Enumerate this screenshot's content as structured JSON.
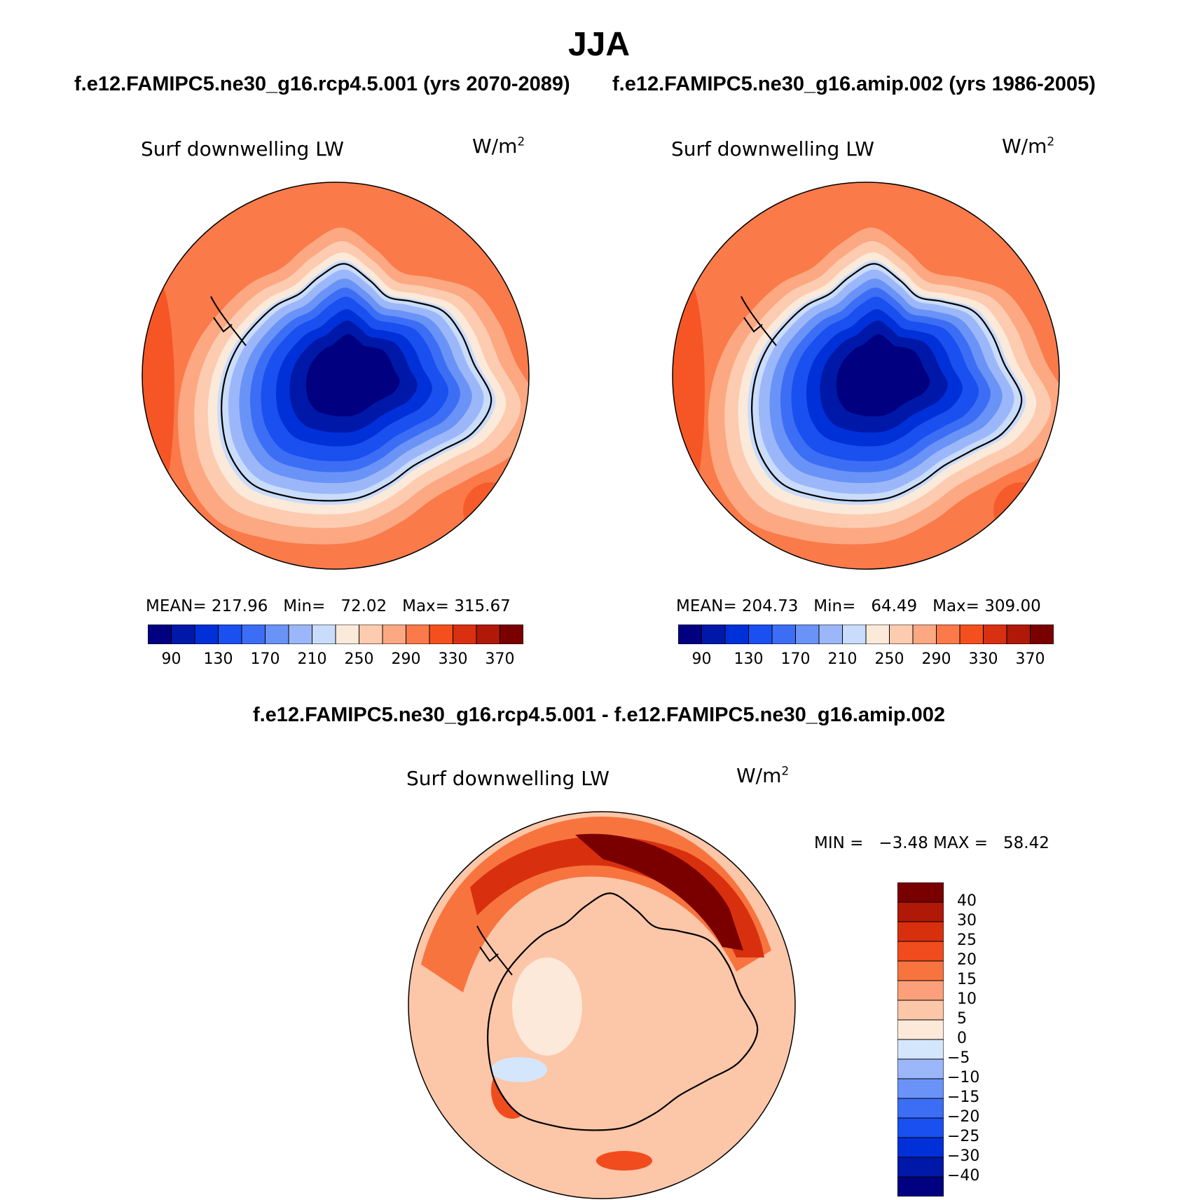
{
  "header": {
    "title": "JJA",
    "case1": "f.e12.FAMIPC5.ne30_g16.rcp4.5.001 (yrs 2070-2089)",
    "case2": "f.e12.FAMIPC5.ne30_g16.amip.002 (yrs 1986-2005)",
    "diff_title": "f.e12.FAMIPC5.ne30_g16.rcp4.5.001 - f.e12.FAMIPC5.ne30_g16.amip.002"
  },
  "palette": {
    "abs": [
      "#000080",
      "#0018a8",
      "#0030d8",
      "#1a4ff0",
      "#3c6ef5",
      "#6a93f7",
      "#9cb7f9",
      "#c9dcfb",
      "#fbe9da",
      "#fccbb0",
      "#fca882",
      "#fa7a4a",
      "#f4501e",
      "#d83010",
      "#b01808",
      "#7a0000"
    ],
    "diff": [
      "#000080",
      "#0018a8",
      "#0030d8",
      "#1a4ff0",
      "#3c6ef5",
      "#6a93f7",
      "#9cb7f9",
      "#d4e6fb",
      "#fde9da",
      "#fcc6a8",
      "#fba07a",
      "#f8743f",
      "#f04c1e",
      "#d8300e",
      "#b01808",
      "#7a0000"
    ],
    "outline": "#000000"
  },
  "panels": [
    {
      "id": "rcp",
      "var_label": "Surf downwelling LW",
      "unit": "W/m",
      "unit_exp": "2",
      "stats": "MEAN= 217.96   Min=   72.02   Max= 315.67",
      "ticks": [
        "90",
        "130",
        "170",
        "210",
        "250",
        "290",
        "330",
        "370"
      ]
    },
    {
      "id": "amip",
      "var_label": "Surf downwelling LW",
      "unit": "W/m",
      "unit_exp": "2",
      "stats": "MEAN= 204.73   Min=   64.49   Max= 309.00",
      "ticks": [
        "90",
        "130",
        "170",
        "210",
        "250",
        "290",
        "330",
        "370"
      ]
    }
  ],
  "diff_panel": {
    "var_label": "Surf downwelling LW",
    "unit": "W/m",
    "unit_exp": "2",
    "stats": "MIN =   −3.48 MAX =   58.42",
    "ticks": [
      "40",
      "30",
      "25",
      "20",
      "15",
      "10",
      "5",
      "0",
      "−5",
      "−10",
      "−15",
      "−20",
      "−25",
      "−30",
      "−40"
    ]
  },
  "chart_data": [
    {
      "type": "heatmap",
      "projection": "south-polar-stereographic",
      "title": "Surf downwelling LW",
      "units": "W/m2",
      "case": "f.e12.FAMIPC5.ne30_g16.rcp4.5.001 (yrs 2070-2089)",
      "season": "JJA",
      "mean": 217.96,
      "min": 72.02,
      "max": 315.67,
      "contour_levels": [
        90,
        100,
        110,
        120,
        130,
        140,
        150,
        160,
        170,
        180,
        190,
        200,
        210,
        220,
        230,
        240,
        250,
        260,
        270,
        280,
        290,
        300,
        310,
        320,
        330,
        340,
        350,
        360,
        370
      ],
      "colorbar_ticks": [
        90,
        130,
        170,
        210,
        250,
        290,
        330,
        370
      ],
      "colorbar_placement": "bottom"
    },
    {
      "type": "heatmap",
      "projection": "south-polar-stereographic",
      "title": "Surf downwelling LW",
      "units": "W/m2",
      "case": "f.e12.FAMIPC5.ne30_g16.amip.002 (yrs 1986-2005)",
      "season": "JJA",
      "mean": 204.73,
      "min": 64.49,
      "max": 309.0,
      "contour_levels": [
        90,
        100,
        110,
        120,
        130,
        140,
        150,
        160,
        170,
        180,
        190,
        200,
        210,
        220,
        230,
        240,
        250,
        260,
        270,
        280,
        290,
        300,
        310,
        320,
        330,
        340,
        350,
        360,
        370
      ],
      "colorbar_ticks": [
        90,
        130,
        170,
        210,
        250,
        290,
        330,
        370
      ],
      "colorbar_placement": "bottom"
    },
    {
      "type": "heatmap",
      "projection": "south-polar-stereographic",
      "title": "Surf downwelling LW",
      "units": "W/m2",
      "case": "f.e12.FAMIPC5.ne30_g16.rcp4.5.001 - f.e12.FAMIPC5.ne30_g16.amip.002",
      "season": "JJA",
      "min": -3.48,
      "max": 58.42,
      "contour_levels": [
        -40,
        -30,
        -25,
        -20,
        -15,
        -10,
        -5,
        0,
        5,
        10,
        15,
        20,
        25,
        30,
        40
      ],
      "colorbar_placement": "right"
    }
  ]
}
